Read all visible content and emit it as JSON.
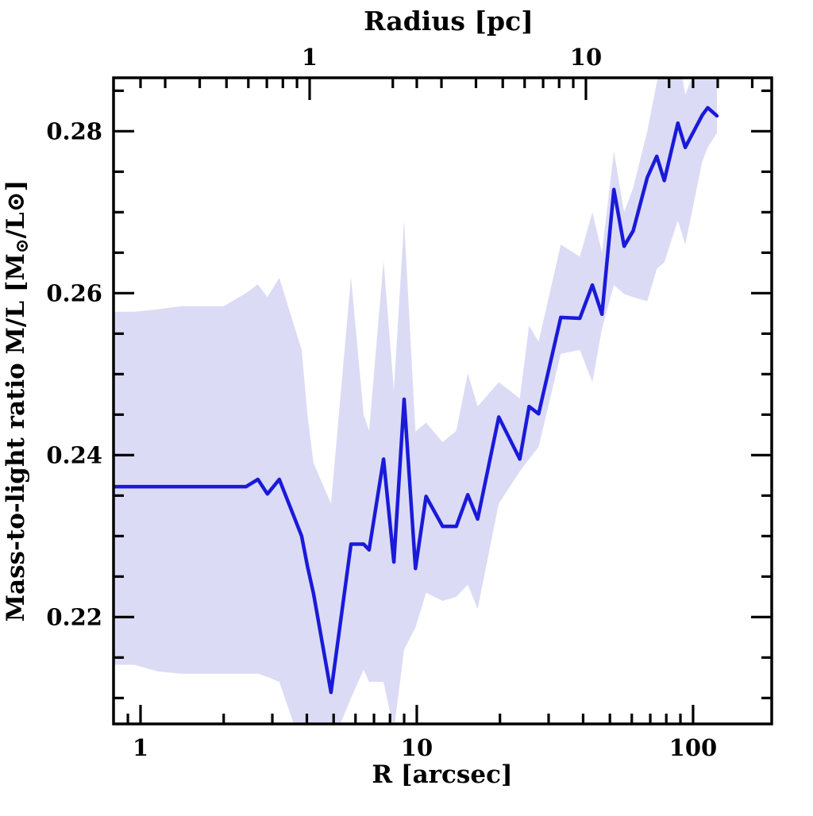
{
  "figure": {
    "background": "#ffffff",
    "frame_color": "#000000",
    "text_color": "#000000"
  },
  "chart_data": {
    "type": "line",
    "xlabel_bottom": "R [arcsec]",
    "xlabel_top": "Radius [pc]",
    "ylabel": "Mass-to-light ratio M/L [M⊙/L⊙]",
    "ylabel_parts": [
      "Mass-to-light ratio M/L [M",
      "⊙",
      "/L",
      "⊙",
      "]"
    ],
    "x_scale": "log",
    "x_range_arcsec": [
      0.7986,
      192.6
    ],
    "y_range": [
      0.2068,
      0.2866
    ],
    "arcsec_per_pc": 4.094,
    "grid": false,
    "legend": "none",
    "x_ticks_major": {
      "values": [
        1,
        10,
        100
      ],
      "labels": [
        "1",
        "10",
        "100"
      ]
    },
    "x_ticks_minor": [
      0.9,
      2,
      3,
      4,
      5,
      6,
      7,
      8,
      9,
      20,
      30,
      40,
      50,
      60,
      70,
      80,
      90
    ],
    "top_ticks_major": {
      "values": [
        1,
        10
      ],
      "labels": [
        "1",
        "10"
      ]
    },
    "top_ticks_minor": [
      0.3,
      0.4,
      0.5,
      0.6,
      0.7,
      0.8,
      0.9,
      2,
      3,
      4,
      5,
      6,
      7,
      8,
      9,
      20,
      30,
      40
    ],
    "y_ticks_major": {
      "values": [
        0.22,
        0.24,
        0.26,
        0.28
      ],
      "labels": [
        "0.22",
        "0.24",
        "0.26",
        "0.28"
      ]
    },
    "y_ticks_minor": [
      0.21,
      0.215,
      0.225,
      0.23,
      0.235,
      0.245,
      0.25,
      0.255,
      0.265,
      0.27,
      0.275,
      0.285
    ],
    "series": [
      {
        "name": "mass-to-light-ratio-profile",
        "color": "#1a1ad9",
        "line_width": 4.5,
        "r_arcsec": [
          0.8,
          0.95,
          1.15,
          1.4,
          1.7,
          2.0,
          2.41,
          2.66,
          2.88,
          3.18,
          3.83,
          4.02,
          4.23,
          4.89,
          5.78,
          6.42,
          6.72,
          7.58,
          8.26,
          9.0,
          9.89,
          10.8,
          12.4,
          13.9,
          15.3,
          16.6,
          19.8,
          23.6,
          25.5,
          27.6,
          33.2,
          38.9,
          43.2,
          46.8,
          51.7,
          56.3,
          60.7,
          68.3,
          73.9,
          78.7,
          88.1,
          93.7,
          108,
          113,
          122
        ],
        "ml": [
          0.2361,
          0.2361,
          0.2361,
          0.2361,
          0.2361,
          0.2361,
          0.2361,
          0.237,
          0.2352,
          0.237,
          0.23,
          0.2263,
          0.2229,
          0.2107,
          0.229,
          0.229,
          0.2283,
          0.2395,
          0.2268,
          0.2469,
          0.226,
          0.2349,
          0.2312,
          0.2312,
          0.2351,
          0.2321,
          0.2447,
          0.2395,
          0.246,
          0.2451,
          0.257,
          0.2569,
          0.261,
          0.2574,
          0.2728,
          0.2658,
          0.2677,
          0.2743,
          0.2769,
          0.2739,
          0.281,
          0.278,
          0.282,
          0.2829,
          0.2819
        ]
      },
      {
        "name": "uncertainty-band",
        "color": "#dcdbf5",
        "upper": [
          0.2577,
          0.2577,
          0.258,
          0.2584,
          0.2584,
          0.2584,
          0.26,
          0.2611,
          0.2595,
          0.2619,
          0.253,
          0.245,
          0.239,
          0.234,
          0.262,
          0.245,
          0.243,
          0.264,
          0.248,
          0.269,
          0.2429,
          0.244,
          0.2416,
          0.243,
          0.2501,
          0.246,
          0.249,
          0.247,
          0.256,
          0.254,
          0.266,
          0.2645,
          0.27,
          0.265,
          0.2775,
          0.27,
          0.273,
          0.28,
          0.286,
          0.29,
          0.29,
          0.2845,
          0.29,
          0.29,
          0.2875
        ],
        "lower": [
          0.2141,
          0.2141,
          0.2133,
          0.213,
          0.213,
          0.213,
          0.213,
          0.213,
          0.2126,
          0.212,
          0.204,
          0.204,
          0.204,
          0.204,
          0.21,
          0.2135,
          0.212,
          0.212,
          0.206,
          0.216,
          0.2187,
          0.223,
          0.222,
          0.2225,
          0.224,
          0.221,
          0.234,
          0.238,
          0.2395,
          0.241,
          0.2525,
          0.253,
          0.249,
          0.2556,
          0.261,
          0.2599,
          0.2595,
          0.259,
          0.263,
          0.2638,
          0.269,
          0.266,
          0.2763,
          0.278,
          0.2798
        ]
      }
    ]
  }
}
